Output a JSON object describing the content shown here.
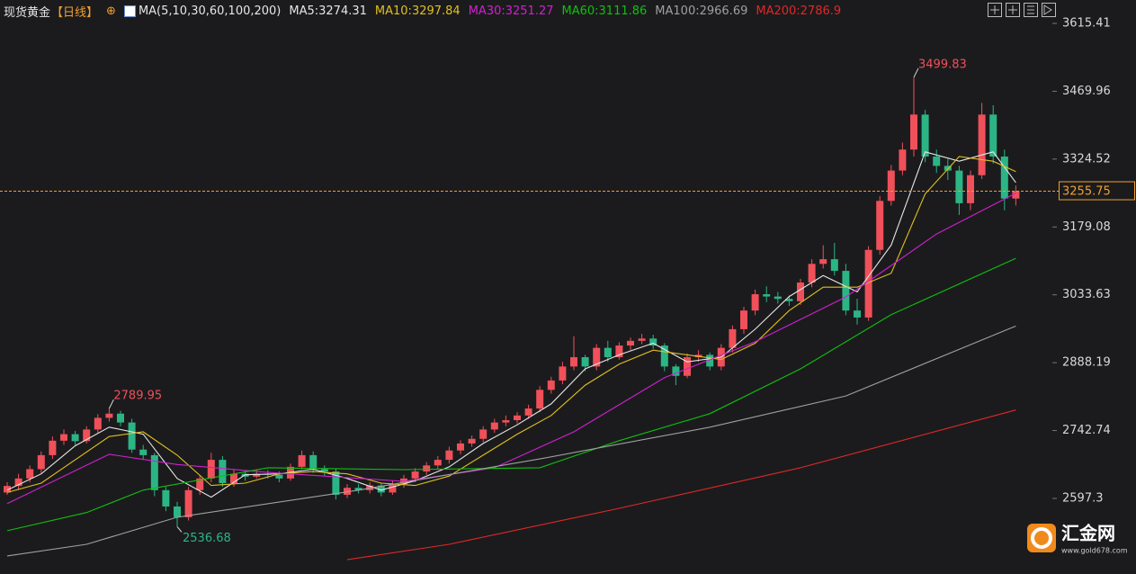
{
  "chart_data": {
    "type": "candlestick",
    "title": "现货黄金",
    "period": "【日线】",
    "indicator": "MA(5,10,30,60,100,200)",
    "open": [
      2610,
      2624,
      2640,
      2660,
      2690,
      2721,
      2735,
      2720,
      2745,
      2770,
      2779,
      2760,
      2702,
      2690,
      2615,
      2580,
      2557,
      2615,
      2640,
      2680,
      2630,
      2650,
      2644,
      2650,
      2648,
      2640,
      2665,
      2690,
      2660,
      2655,
      2605,
      2620,
      2615,
      2625,
      2610,
      2628,
      2640,
      2655,
      2668,
      2680,
      2700,
      2715,
      2725,
      2745,
      2760,
      2765,
      2775,
      2790,
      2830,
      2850,
      2880,
      2900,
      2880,
      2920,
      2900,
      2925,
      2935,
      2940,
      2925,
      2880,
      2860,
      2900,
      2905,
      2880,
      2920,
      2960,
      3000,
      3035,
      3030,
      3025,
      3020,
      3060,
      3100,
      3110,
      3085,
      3000,
      2985,
      3130,
      3235,
      3300,
      3345,
      3420,
      3330,
      3310,
      3300,
      3230,
      3290,
      3420,
      3330,
      3240
    ],
    "high": [
      2632,
      2650,
      2668,
      2698,
      2730,
      2745,
      2742,
      2752,
      2778,
      2789.95,
      2785,
      2768,
      2712,
      2695,
      2622,
      2590,
      2622,
      2648,
      2695,
      2688,
      2660,
      2656,
      2660,
      2658,
      2655,
      2672,
      2700,
      2698,
      2668,
      2660,
      2628,
      2628,
      2632,
      2630,
      2635,
      2648,
      2662,
      2675,
      2688,
      2708,
      2722,
      2732,
      2752,
      2768,
      2775,
      2782,
      2798,
      2838,
      2858,
      2890,
      2945,
      2905,
      2928,
      2935,
      2932,
      2942,
      2950,
      2948,
      2930,
      2885,
      2908,
      2915,
      2910,
      2928,
      2968,
      3008,
      3045,
      3052,
      3040,
      3032,
      3068,
      3110,
      3140,
      3145,
      3100,
      3025,
      3138,
      3245,
      3312,
      3360,
      3499.83,
      3430,
      3345,
      3325,
      3310,
      3300,
      3445,
      3440,
      3345,
      3268
    ],
    "low": [
      2605,
      2615,
      2632,
      2652,
      2682,
      2712,
      2712,
      2715,
      2738,
      2762,
      2752,
      2695,
      2680,
      2602,
      2570,
      2536.68,
      2550,
      2605,
      2632,
      2622,
      2622,
      2635,
      2640,
      2640,
      2632,
      2635,
      2660,
      2652,
      2645,
      2595,
      2598,
      2608,
      2608,
      2602,
      2605,
      2620,
      2632,
      2648,
      2660,
      2672,
      2692,
      2708,
      2718,
      2738,
      2752,
      2758,
      2768,
      2782,
      2822,
      2842,
      2872,
      2870,
      2872,
      2890,
      2895,
      2915,
      2928,
      2918,
      2870,
      2840,
      2855,
      2890,
      2872,
      2872,
      2910,
      2950,
      2990,
      3018,
      3015,
      3010,
      3012,
      3050,
      3090,
      3075,
      2990,
      2970,
      2978,
      3120,
      3225,
      3290,
      3330,
      3318,
      3295,
      3280,
      3205,
      3215,
      3282,
      3315,
      3215,
      3225
    ],
    "close": [
      2624,
      2640,
      2660,
      2690,
      2721,
      2735,
      2720,
      2745,
      2770,
      2779,
      2760,
      2702,
      2690,
      2615,
      2580,
      2557,
      2615,
      2640,
      2680,
      2630,
      2650,
      2644,
      2650,
      2648,
      2640,
      2665,
      2690,
      2660,
      2655,
      2605,
      2620,
      2615,
      2625,
      2610,
      2628,
      2640,
      2655,
      2668,
      2680,
      2700,
      2715,
      2725,
      2745,
      2760,
      2765,
      2775,
      2790,
      2830,
      2850,
      2880,
      2900,
      2880,
      2920,
      2900,
      2925,
      2935,
      2940,
      2925,
      2880,
      2860,
      2900,
      2905,
      2880,
      2920,
      2960,
      3000,
      3035,
      3030,
      3025,
      3020,
      3060,
      3100,
      3110,
      3085,
      3000,
      2985,
      3130,
      3235,
      3300,
      3345,
      3420,
      3330,
      3310,
      3300,
      3230,
      3290,
      3420,
      3330,
      3240,
      3255.75
    ],
    "up_color": "#f0505a",
    "down_color": "#2bb585",
    "last_price_color": "#f0a030",
    "ylim": [
      2470,
      3627
    ],
    "yticks": [
      3615.41,
      3469.96,
      3324.52,
      3179.08,
      3033.63,
      2888.19,
      2742.74,
      2597.3
    ],
    "labeled_highs": [
      9,
      80
    ],
    "labeled_lows": [
      15
    ],
    "series": [
      {
        "name": "MA5:3274.31",
        "color": "#e6e6e6",
        "x": [
          0,
          3,
          6,
          9,
          12,
          15,
          18,
          21,
          24,
          27,
          30,
          33,
          36,
          39,
          42,
          45,
          48,
          51,
          54,
          57,
          60,
          63,
          66,
          69,
          72,
          75,
          78,
          81,
          84,
          87,
          89
        ],
        "values": [
          2615,
          2650,
          2710,
          2750,
          2735,
          2640,
          2600,
          2648,
          2650,
          2660,
          2640,
          2615,
          2635,
          2665,
          2715,
          2755,
          2800,
          2875,
          2905,
          2930,
          2890,
          2900,
          2960,
          3030,
          3075,
          3040,
          3140,
          3340,
          3320,
          3340,
          3274.31
        ]
      },
      {
        "name": "MA10:3297.84",
        "color": "#e0c020",
        "x": [
          0,
          3,
          6,
          9,
          12,
          15,
          18,
          21,
          24,
          27,
          30,
          33,
          36,
          39,
          42,
          45,
          48,
          51,
          54,
          57,
          60,
          63,
          66,
          69,
          72,
          75,
          78,
          81,
          84,
          87,
          89
        ],
        "values": [
          2610,
          2630,
          2680,
          2730,
          2740,
          2690,
          2625,
          2630,
          2650,
          2655,
          2650,
          2630,
          2625,
          2645,
          2690,
          2735,
          2775,
          2840,
          2885,
          2915,
          2905,
          2895,
          2930,
          3000,
          3050,
          3050,
          3080,
          3250,
          3330,
          3320,
          3297.84
        ]
      },
      {
        "name": "MA30:3251.27",
        "color": "#d020d0",
        "x": [
          0,
          9,
          15,
          23,
          35,
          43,
          50,
          58,
          66,
          74,
          82,
          89
        ],
        "values": [
          2586,
          2692,
          2670,
          2653,
          2634,
          2663,
          2740,
          2856,
          2933,
          3029,
          3164,
          3251.27
        ]
      },
      {
        "name": "MA60:3111.86",
        "color": "#10c010",
        "x": [
          0,
          7,
          12,
          23,
          35,
          47,
          54,
          62,
          70,
          78,
          89
        ],
        "values": [
          2528,
          2567,
          2615,
          2663,
          2659,
          2663,
          2721,
          2779,
          2875,
          2991,
          3111.86
        ]
      },
      {
        "name": "MA100:2966.69",
        "color": "#a0a0a0",
        "x": [
          0,
          7,
          15,
          31,
          47,
          62,
          74,
          89
        ],
        "values": [
          2474,
          2499,
          2557,
          2615,
          2682,
          2750,
          2817,
          2966.69
        ]
      },
      {
        "name": "MA200:2786.9",
        "color": "#e02828",
        "x": [
          30,
          39,
          54,
          70,
          89
        ],
        "values": [
          2466,
          2499,
          2576,
          2663,
          2786.9
        ]
      }
    ]
  },
  "watermark": {
    "name": "汇金网",
    "url": "www.gold678.com"
  }
}
